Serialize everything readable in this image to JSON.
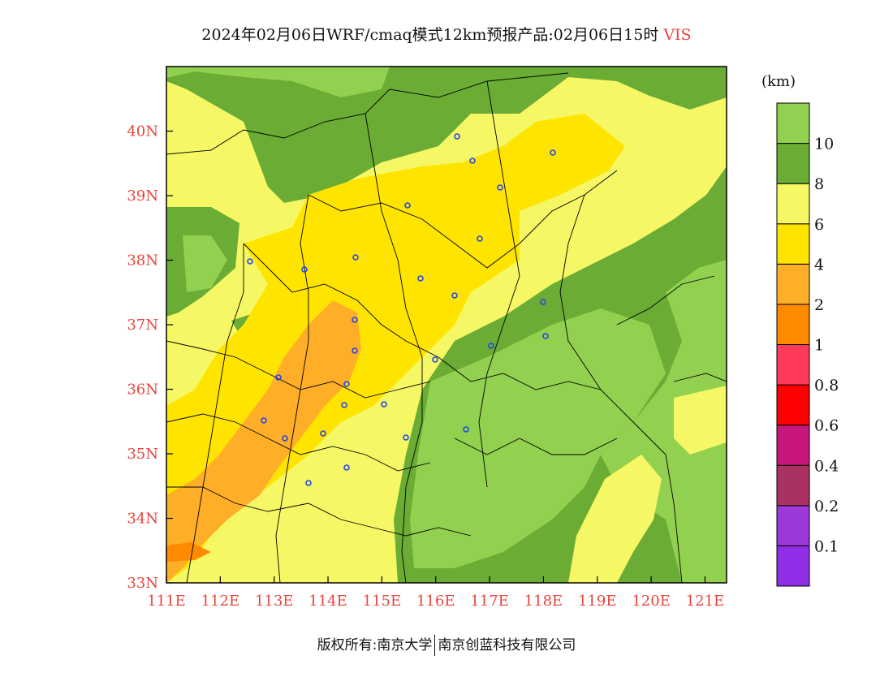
{
  "title": {
    "text": "2024年02月06日WRF/cmaq模式12km预报产品:02月06日15时",
    "variable": "VIS"
  },
  "colorbar": {
    "unit": "(km)",
    "levels": [
      {
        "label": "",
        "color": "#8f2ee6"
      },
      {
        "label": "0.1",
        "color": "#9b3ad8"
      },
      {
        "label": "0.2",
        "color": "#a93262"
      },
      {
        "label": "0.4",
        "color": "#c8177c"
      },
      {
        "label": "0.6",
        "color": "#ff0000"
      },
      {
        "label": "0.8",
        "color": "#ff3a5a"
      },
      {
        "label": "1",
        "color": "#ff8a00"
      },
      {
        "label": "2",
        "color": "#ffae28"
      },
      {
        "label": "4",
        "color": "#ffe400"
      },
      {
        "label": "6",
        "color": "#f5f765"
      },
      {
        "label": "8",
        "color": "#6aac34"
      },
      {
        "label": "10",
        "color": "#92d050"
      }
    ]
  },
  "map": {
    "lon_ticks": [
      "111E",
      "112E",
      "113E",
      "114E",
      "115E",
      "116E",
      "117E",
      "118E",
      "119E",
      "120E",
      "121E"
    ],
    "lat_ticks": [
      "33N",
      "34N",
      "35N",
      "36N",
      "37N",
      "38N",
      "39N",
      "40N"
    ],
    "lon_range": [
      111,
      121.4
    ],
    "lat_range": [
      33,
      41
    ]
  },
  "footer": {
    "left": "版权所有:南京大学",
    "right": "南京创蓝科技有限公司"
  }
}
